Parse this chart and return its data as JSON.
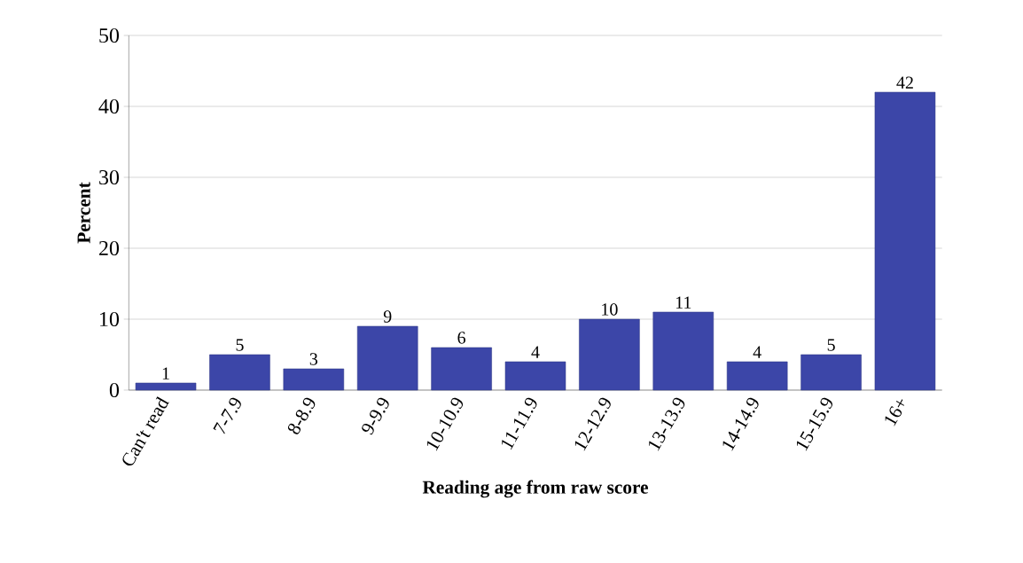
{
  "chart_data": {
    "type": "bar",
    "xlabel": "Reading  age from raw score",
    "ylabel": "Percent",
    "categories": [
      "Can't read",
      "7-7.9",
      "8-8.9",
      "9-9.9",
      "10-10.9",
      "11-11.9",
      "12-12.9",
      "13-13.9",
      "14-14.9",
      "15-15.9",
      "16+"
    ],
    "values": [
      1,
      5,
      3,
      9,
      6,
      4,
      10,
      11,
      4,
      5,
      42
    ],
    "color": "#3c46a8",
    "ylim": [
      0,
      50
    ],
    "yticks": [
      0,
      10,
      20,
      30,
      40,
      50
    ],
    "grid": "y",
    "data_labels": true
  }
}
